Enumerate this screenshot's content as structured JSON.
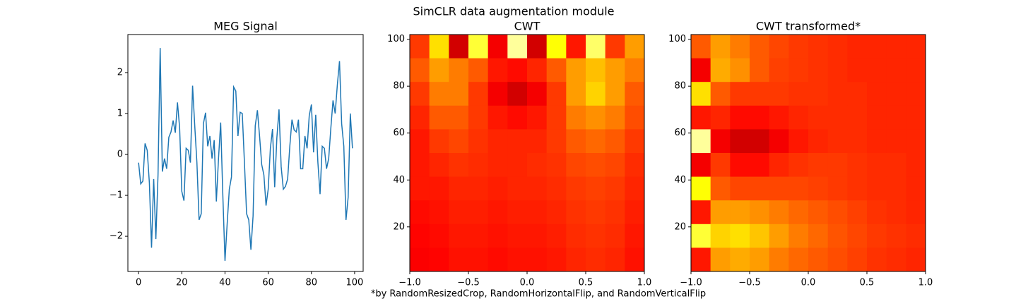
{
  "title": "SimCLR data augmentation module",
  "caption": "*by RandomResizedCrop, RandomHorizontalFlip, and RandomVerticalFlip",
  "chart_data": [
    {
      "type": "line",
      "title": "MEG Signal",
      "color": "#1f77b4",
      "x": [
        0,
        1,
        2,
        3,
        4,
        5,
        6,
        7,
        8,
        9,
        10,
        11,
        12,
        13,
        14,
        15,
        16,
        17,
        18,
        19,
        20,
        21,
        22,
        23,
        24,
        25,
        26,
        27,
        28,
        29,
        30,
        31,
        32,
        33,
        34,
        35,
        36,
        37,
        38,
        39,
        40,
        41,
        42,
        43,
        44,
        45,
        46,
        47,
        48,
        49,
        50,
        51,
        52,
        53,
        54,
        55,
        56,
        57,
        58,
        59,
        60,
        61,
        62,
        63,
        64,
        65,
        66,
        67,
        68,
        69,
        70,
        71,
        72,
        73,
        74,
        75,
        76,
        77,
        78,
        79,
        80,
        81,
        82,
        83,
        84,
        85,
        86,
        87,
        88,
        89,
        90,
        91,
        92,
        93,
        94,
        95,
        96,
        97,
        98,
        99
      ],
      "values": [
        -0.2,
        -0.72,
        -0.65,
        0.27,
        0.1,
        -0.7,
        -2.28,
        -0.6,
        -2.07,
        -0.5,
        2.6,
        -0.42,
        -0.1,
        -0.35,
        0.42,
        0.55,
        0.83,
        0.53,
        1.27,
        0.65,
        -0.9,
        -1.13,
        0.15,
        0.1,
        -0.2,
        1.68,
        0.7,
        -0.2,
        -1.6,
        -1.45,
        0.75,
        1.02,
        0.2,
        0.45,
        -0.1,
        0.35,
        -1.15,
        -0.1,
        0.78,
        -1.0,
        -2.6,
        -1.7,
        -0.85,
        -0.55,
        1.65,
        1.55,
        0.45,
        1.03,
        1.0,
        -0.2,
        -1.45,
        -1.6,
        -2.33,
        -1.5,
        0.7,
        1.08,
        0.45,
        -0.25,
        -0.5,
        -1.25,
        -0.85,
        0.15,
        0.62,
        -0.8,
        0.4,
        1.1,
        -0.3,
        -0.85,
        -0.78,
        -0.6,
        0.2,
        0.85,
        0.6,
        0.55,
        0.85,
        -0.35,
        -0.35,
        0.45,
        0.15,
        0.95,
        1.22,
        0.05,
        0.97,
        -0.2,
        -0.97,
        0.2,
        0.15,
        -0.35,
        -0.1,
        0.65,
        1.32,
        1.0,
        1.7,
        2.28,
        0.75,
        0.2,
        -1.6,
        -1.05,
        1.0,
        0.15
      ],
      "xlim": [
        -4.95,
        103.95
      ],
      "ylim": [
        -2.86,
        2.93
      ],
      "xticks": [
        0,
        20,
        40,
        60,
        80,
        100
      ],
      "yticks": [
        {
          "value": -2,
          "label": "−2"
        },
        {
          "value": -1,
          "label": "−1"
        },
        0,
        1,
        2
      ]
    },
    {
      "type": "heatmap",
      "title": "CWT",
      "colormap": "hot",
      "xlim": [
        -1,
        1
      ],
      "ylim": [
        1,
        102
      ],
      "xticks": [
        {
          "value": -1,
          "label": "−1.0"
        },
        {
          "value": -0.5,
          "label": "−0.5"
        },
        {
          "value": 0,
          "label": "0.0"
        },
        {
          "value": 0.5,
          "label": "0.5"
        },
        {
          "value": 1,
          "label": "1.0"
        }
      ],
      "yticks": [
        20,
        40,
        60,
        80,
        100
      ],
      "z": [
        [
          0.45,
          0.7,
          0.3,
          0.8,
          0.35,
          0.9,
          0.3,
          0.75,
          0.4,
          0.85,
          0.45,
          0.6
        ],
        [
          0.5,
          0.6,
          0.55,
          0.5,
          0.4,
          0.38,
          0.42,
          0.5,
          0.6,
          0.65,
          0.6,
          0.55
        ],
        [
          0.45,
          0.55,
          0.55,
          0.45,
          0.35,
          0.3,
          0.35,
          0.45,
          0.6,
          0.68,
          0.6,
          0.5
        ],
        [
          0.42,
          0.5,
          0.5,
          0.45,
          0.4,
          0.38,
          0.4,
          0.45,
          0.55,
          0.58,
          0.55,
          0.48
        ],
        [
          0.4,
          0.45,
          0.47,
          0.44,
          0.42,
          0.42,
          0.42,
          0.45,
          0.5,
          0.52,
          0.5,
          0.45
        ],
        [
          0.4,
          0.42,
          0.44,
          0.43,
          0.42,
          0.42,
          0.43,
          0.44,
          0.47,
          0.48,
          0.47,
          0.43
        ],
        [
          0.4,
          0.4,
          0.42,
          0.42,
          0.41,
          0.42,
          0.42,
          0.43,
          0.45,
          0.46,
          0.45,
          0.42
        ],
        [
          0.38,
          0.39,
          0.41,
          0.41,
          0.4,
          0.41,
          0.41,
          0.42,
          0.44,
          0.45,
          0.44,
          0.41
        ],
        [
          0.37,
          0.38,
          0.4,
          0.4,
          0.39,
          0.4,
          0.4,
          0.41,
          0.43,
          0.44,
          0.43,
          0.4
        ],
        [
          0.36,
          0.37,
          0.39,
          0.39,
          0.38,
          0.39,
          0.39,
          0.4,
          0.42,
          0.43,
          0.42,
          0.39
        ]
      ]
    },
    {
      "type": "heatmap",
      "title": "CWT transformed*",
      "colormap": "hot",
      "xlim": [
        -1,
        1
      ],
      "ylim": [
        1,
        102
      ],
      "xticks": [
        {
          "value": -1,
          "label": "−1.0"
        },
        {
          "value": -0.5,
          "label": "−0.5"
        },
        {
          "value": 0,
          "label": "0.0"
        },
        {
          "value": 0.5,
          "label": "0.5"
        },
        {
          "value": 1,
          "label": "1.0"
        }
      ],
      "yticks": [
        20,
        40,
        60,
        80,
        100
      ],
      "z": [
        [
          0.5,
          0.6,
          0.55,
          0.5,
          0.47,
          0.45,
          0.44,
          0.43,
          0.42,
          0.42,
          0.42,
          0.42
        ],
        [
          0.35,
          0.62,
          0.58,
          0.5,
          0.46,
          0.45,
          0.44,
          0.43,
          0.42,
          0.42,
          0.42,
          0.42
        ],
        [
          0.7,
          0.5,
          0.45,
          0.45,
          0.45,
          0.44,
          0.44,
          0.43,
          0.43,
          0.42,
          0.42,
          0.42
        ],
        [
          0.4,
          0.42,
          0.38,
          0.38,
          0.4,
          0.42,
          0.43,
          0.43,
          0.43,
          0.42,
          0.42,
          0.42
        ],
        [
          0.9,
          0.35,
          0.3,
          0.3,
          0.35,
          0.4,
          0.42,
          0.43,
          0.43,
          0.42,
          0.42,
          0.42
        ],
        [
          0.35,
          0.45,
          0.38,
          0.38,
          0.42,
          0.44,
          0.45,
          0.45,
          0.44,
          0.43,
          0.43,
          0.42
        ],
        [
          0.75,
          0.5,
          0.47,
          0.47,
          0.47,
          0.47,
          0.46,
          0.45,
          0.44,
          0.43,
          0.43,
          0.42
        ],
        [
          0.4,
          0.6,
          0.6,
          0.58,
          0.55,
          0.52,
          0.5,
          0.48,
          0.46,
          0.44,
          0.43,
          0.42
        ],
        [
          0.8,
          0.68,
          0.7,
          0.66,
          0.6,
          0.55,
          0.52,
          0.49,
          0.47,
          0.45,
          0.44,
          0.43
        ],
        [
          0.4,
          0.6,
          0.62,
          0.6,
          0.55,
          0.52,
          0.5,
          0.48,
          0.46,
          0.44,
          0.43,
          0.42
        ]
      ]
    }
  ]
}
